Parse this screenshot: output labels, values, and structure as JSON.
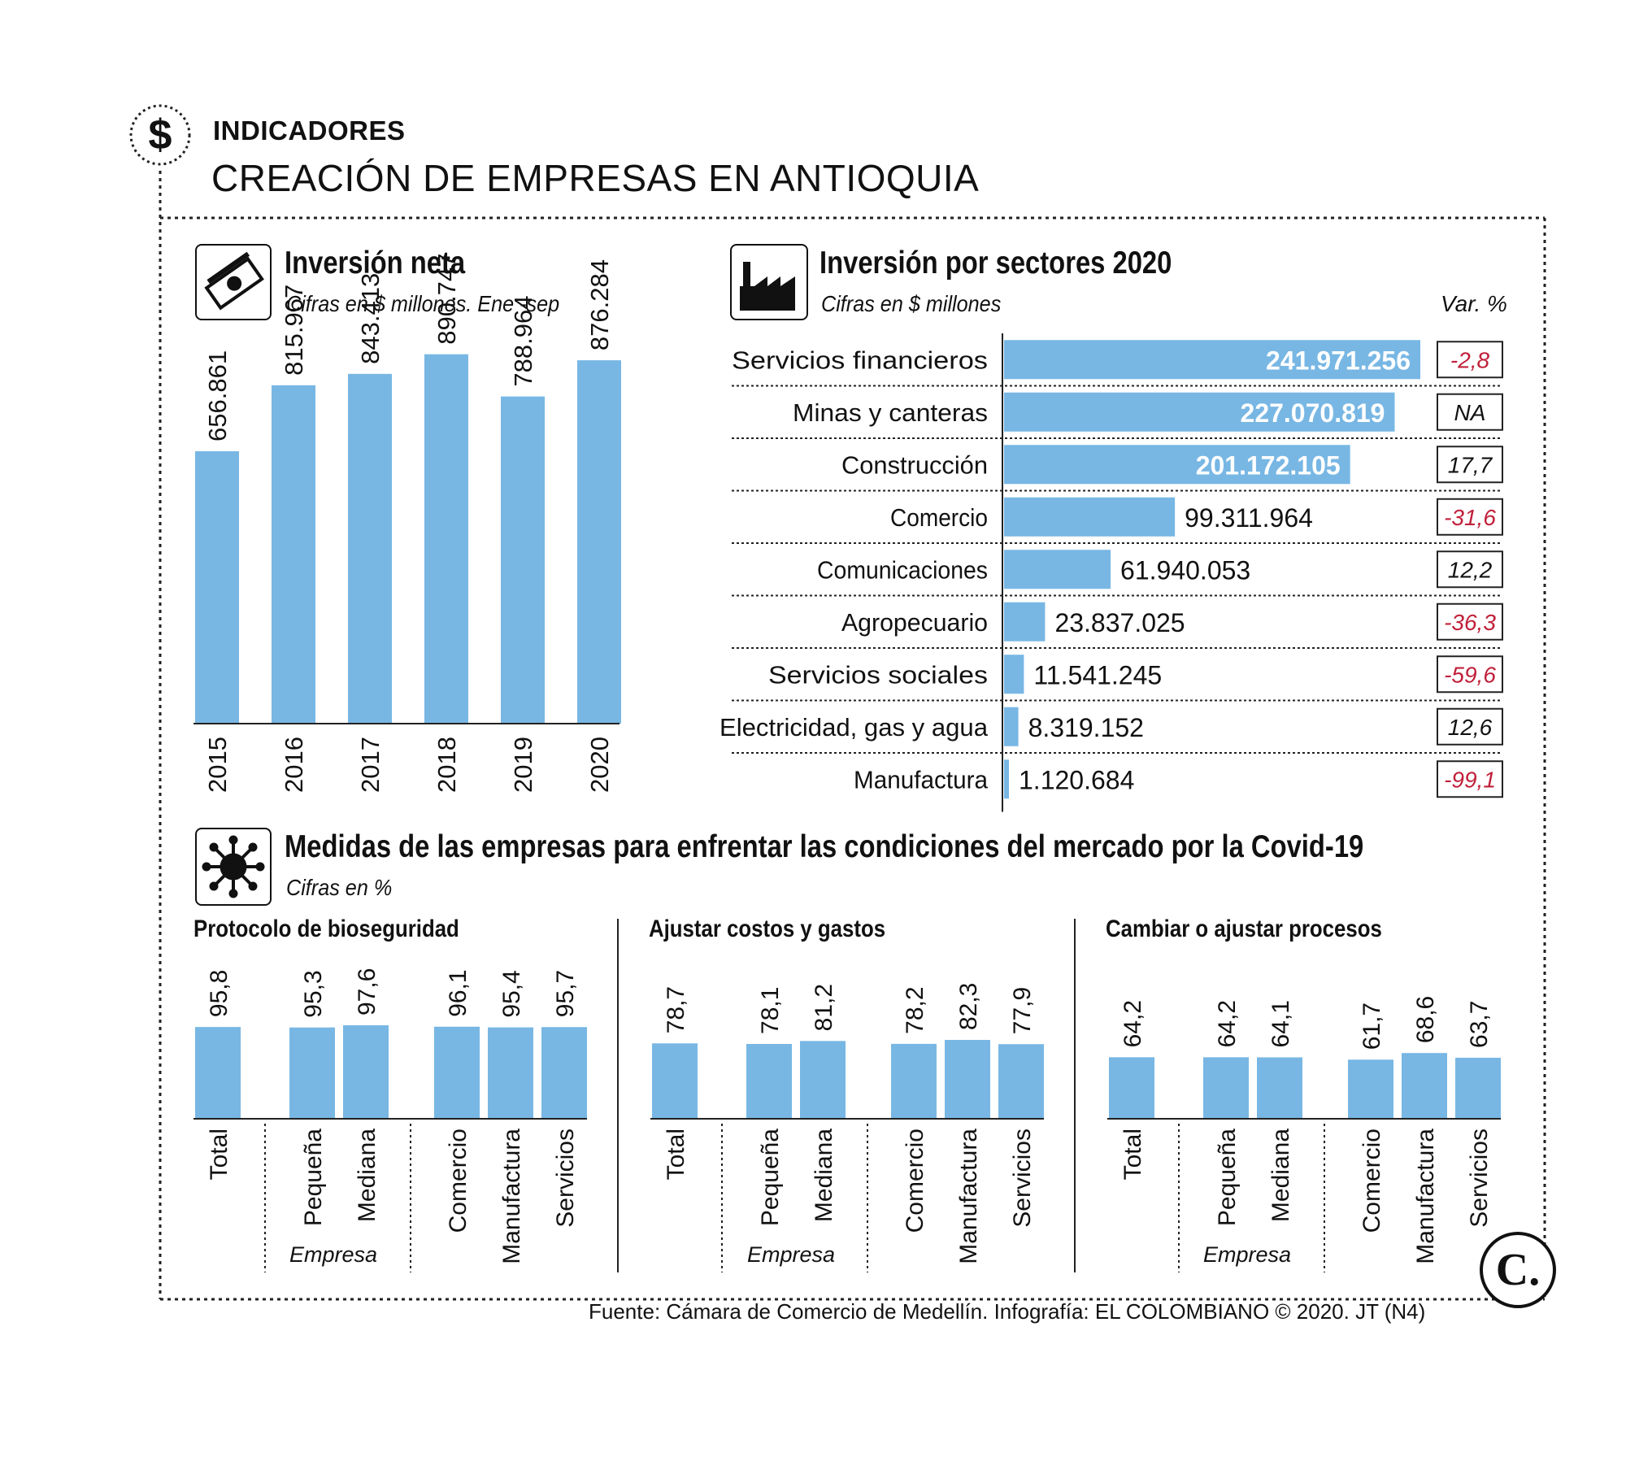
{
  "header": {
    "kicker": "INDICADORES",
    "title": "CREACIÓN DE EMPRESAS EN ANTIOQUIA"
  },
  "inversion_neta": {
    "title": "Inversión neta",
    "subtitle": "Cifras en $ millones. Ene -sep",
    "icon": "money-icon"
  },
  "inversion_sectores": {
    "title": "Inversión por sectores 2020",
    "subtitle": "Cifras en $ millones",
    "var_header": "Var. %",
    "icon": "factory-icon"
  },
  "covid": {
    "title": "Medidas de las empresas para enfrentar las condiciones del mercado por la Covid-19",
    "subtitle": "Cifras en %",
    "icon": "virus-icon",
    "empresa_label": "Empresa"
  },
  "footer": {
    "source": "Fuente: Cámara de Comercio de Medellín. Infografía: EL COLOMBIANO © 2020. JT (N4)",
    "logo_letter": "C."
  },
  "colors": {
    "bar": "#78b7e4",
    "negative": "#c0203a",
    "text": "#111111"
  },
  "chart_data": [
    {
      "type": "bar",
      "id": "inversion_neta",
      "categories": [
        "2015",
        "2016",
        "2017",
        "2018",
        "2019",
        "2020"
      ],
      "values": [
        656861,
        815967,
        843413,
        890747,
        788964,
        876284
      ],
      "labels": [
        "656.861",
        "815.967",
        "843.413",
        "890.747",
        "788.964",
        "876.284"
      ],
      "ylim": [
        0,
        1000000
      ]
    },
    {
      "type": "bar",
      "orientation": "horizontal",
      "id": "inversion_sectores",
      "categories": [
        "Servicios financieros",
        "Minas y canteras",
        "Construcción",
        "Comercio",
        "Comunicaciones",
        "Agropecuario",
        "Servicios sociales",
        "Electricidad, gas y agua",
        "Manufactura"
      ],
      "values": [
        241971256,
        227070819,
        201172105,
        99311964,
        61940053,
        23837025,
        11541245,
        8319152,
        1120684
      ],
      "labels": [
        "241.971.256",
        "227.070.819",
        "201.172.105",
        "99.311.964",
        "61.940.053",
        "23.837.025",
        "11.541.245",
        "8.319.152",
        "1.120.684"
      ],
      "var_pct": [
        "-2,8",
        "NA",
        "17,7",
        "-31,6",
        "12,2",
        "-36,3",
        "-59,6",
        "12,6",
        "-99,1"
      ],
      "var_negative": [
        true,
        false,
        false,
        true,
        false,
        true,
        true,
        false,
        true
      ]
    },
    {
      "type": "bar",
      "id": "protocolo",
      "title": "Protocolo de bioseguridad",
      "categories": [
        "Total",
        "Pequeña",
        "Mediana",
        "Comercio",
        "Manufactura",
        "Servicios"
      ],
      "values": [
        95.8,
        95.3,
        97.6,
        96.1,
        95.4,
        95.7
      ],
      "labels": [
        "95,8",
        "95,3",
        "97,6",
        "96,1",
        "95,4",
        "95,7"
      ],
      "ylim": [
        0,
        100
      ]
    },
    {
      "type": "bar",
      "id": "costos",
      "title": "Ajustar costos y gastos",
      "categories": [
        "Total",
        "Pequeña",
        "Mediana",
        "Comercio",
        "Manufactura",
        "Servicios"
      ],
      "values": [
        78.7,
        78.1,
        81.2,
        78.2,
        82.3,
        77.9
      ],
      "labels": [
        "78,7",
        "78,1",
        "81,2",
        "78,2",
        "82,3",
        "77,9"
      ],
      "ylim": [
        0,
        100
      ]
    },
    {
      "type": "bar",
      "id": "procesos",
      "title": "Cambiar o ajustar procesos",
      "categories": [
        "Total",
        "Pequeña",
        "Mediana",
        "Comercio",
        "Manufactura",
        "Servicios"
      ],
      "values": [
        64.2,
        64.2,
        64.1,
        61.7,
        68.6,
        63.7
      ],
      "labels": [
        "64,2",
        "64,2",
        "64,1",
        "61,7",
        "68,6",
        "63,7"
      ],
      "ylim": [
        0,
        100
      ]
    }
  ]
}
